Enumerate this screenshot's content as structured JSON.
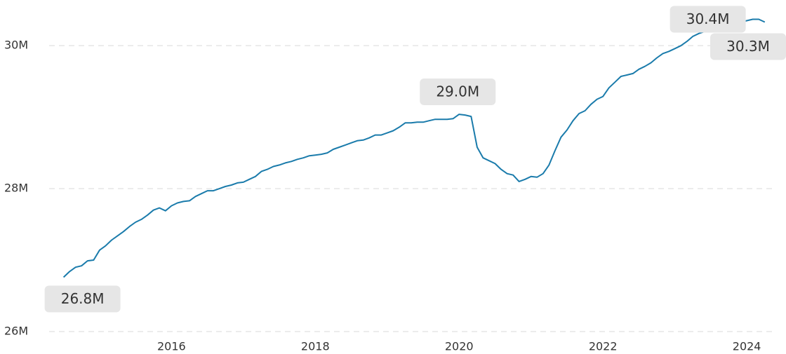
{
  "chart_data": {
    "type": "line",
    "x": [
      2014.5,
      2014.583,
      2014.667,
      2014.75,
      2014.833,
      2014.917,
      2015,
      2015.083,
      2015.167,
      2015.25,
      2015.333,
      2015.417,
      2015.5,
      2015.583,
      2015.667,
      2015.75,
      2015.833,
      2015.917,
      2016,
      2016.083,
      2016.167,
      2016.25,
      2016.333,
      2016.417,
      2016.5,
      2016.583,
      2016.667,
      2016.75,
      2016.833,
      2016.917,
      2017,
      2017.083,
      2017.167,
      2017.25,
      2017.333,
      2017.417,
      2017.5,
      2017.583,
      2017.667,
      2017.75,
      2017.833,
      2017.917,
      2018,
      2018.083,
      2018.167,
      2018.25,
      2018.333,
      2018.417,
      2018.5,
      2018.583,
      2018.667,
      2018.75,
      2018.833,
      2018.917,
      2019,
      2019.083,
      2019.167,
      2019.25,
      2019.333,
      2019.417,
      2019.5,
      2019.583,
      2019.667,
      2019.75,
      2019.833,
      2019.917,
      2020,
      2020.083,
      2020.167,
      2020.25,
      2020.333,
      2020.417,
      2020.5,
      2020.583,
      2020.667,
      2020.75,
      2020.833,
      2020.917,
      2021,
      2021.083,
      2021.167,
      2021.25,
      2021.333,
      2021.417,
      2021.5,
      2021.583,
      2021.667,
      2021.75,
      2021.833,
      2021.917,
      2022,
      2022.083,
      2022.167,
      2022.25,
      2022.333,
      2022.417,
      2022.5,
      2022.583,
      2022.667,
      2022.75,
      2022.833,
      2022.917,
      2023,
      2023.083,
      2023.167,
      2023.25,
      2023.333,
      2023.417,
      2023.5,
      2023.583,
      2023.667,
      2023.75,
      2023.833,
      2023.917,
      2024,
      2024.083,
      2024.167,
      2024.25
    ],
    "values": [
      26.76,
      26.84,
      26.9,
      26.92,
      26.99,
      27.0,
      27.14,
      27.2,
      27.28,
      27.34,
      27.4,
      27.47,
      27.53,
      27.57,
      27.63,
      27.7,
      27.73,
      27.69,
      27.76,
      27.8,
      27.82,
      27.83,
      27.89,
      27.93,
      27.97,
      27.97,
      28.0,
      28.03,
      28.05,
      28.08,
      28.09,
      28.13,
      28.17,
      28.24,
      28.27,
      28.31,
      28.33,
      28.36,
      28.38,
      28.41,
      28.43,
      28.46,
      28.47,
      28.48,
      28.5,
      28.55,
      28.58,
      28.61,
      28.64,
      28.67,
      28.68,
      28.71,
      28.75,
      28.75,
      28.78,
      28.81,
      28.86,
      28.92,
      28.92,
      28.93,
      28.93,
      28.95,
      28.97,
      28.97,
      28.97,
      28.98,
      29.04,
      29.03,
      29.01,
      28.58,
      28.43,
      28.39,
      28.35,
      28.27,
      28.21,
      28.19,
      28.1,
      28.13,
      28.17,
      28.16,
      28.21,
      28.33,
      28.53,
      28.72,
      28.82,
      28.95,
      29.05,
      29.09,
      29.18,
      29.25,
      29.29,
      29.41,
      29.49,
      29.57,
      29.59,
      29.61,
      29.67,
      29.71,
      29.76,
      29.83,
      29.89,
      29.92,
      29.96,
      30.0,
      30.06,
      30.13,
      30.17,
      30.2,
      30.23,
      30.25,
      30.27,
      30.29,
      30.31,
      30.33,
      30.35,
      30.37,
      30.37,
      30.33
    ],
    "value_labels": [
      "26.8M",
      null,
      null,
      null,
      null,
      null,
      null,
      null,
      null,
      null,
      null,
      null,
      null,
      null,
      null,
      null,
      null,
      null,
      null,
      null,
      null,
      null,
      null,
      null,
      null,
      null,
      null,
      null,
      null,
      null,
      null,
      null,
      null,
      null,
      null,
      null,
      null,
      null,
      null,
      null,
      null,
      null,
      null,
      null,
      null,
      null,
      null,
      null,
      null,
      null,
      null,
      null,
      null,
      null,
      null,
      null,
      null,
      null,
      null,
      null,
      null,
      null,
      null,
      null,
      null,
      null,
      "29.0M",
      null,
      null,
      null,
      null,
      null,
      null,
      null,
      null,
      null,
      null,
      null,
      null,
      null,
      null,
      null,
      null,
      null,
      null,
      null,
      null,
      null,
      null,
      null,
      null,
      null,
      null,
      null,
      null,
      null,
      null,
      null,
      null,
      null,
      null,
      null,
      null,
      null,
      null,
      null,
      null,
      null,
      null,
      null,
      null,
      null,
      null,
      null,
      null,
      "30.4M",
      null,
      "30.3M"
    ],
    "color": "#1a7bab",
    "xlim": [
      2014.25,
      2024.35
    ],
    "xticks": [
      2016,
      2018,
      2020,
      2022,
      2024
    ],
    "ylim": [
      26,
      30.6
    ],
    "yticks": [
      {
        "value": 26,
        "label": "26M"
      },
      {
        "value": 28,
        "label": "28M"
      },
      {
        "value": 30,
        "label": "30M"
      }
    ],
    "grid": true
  }
}
